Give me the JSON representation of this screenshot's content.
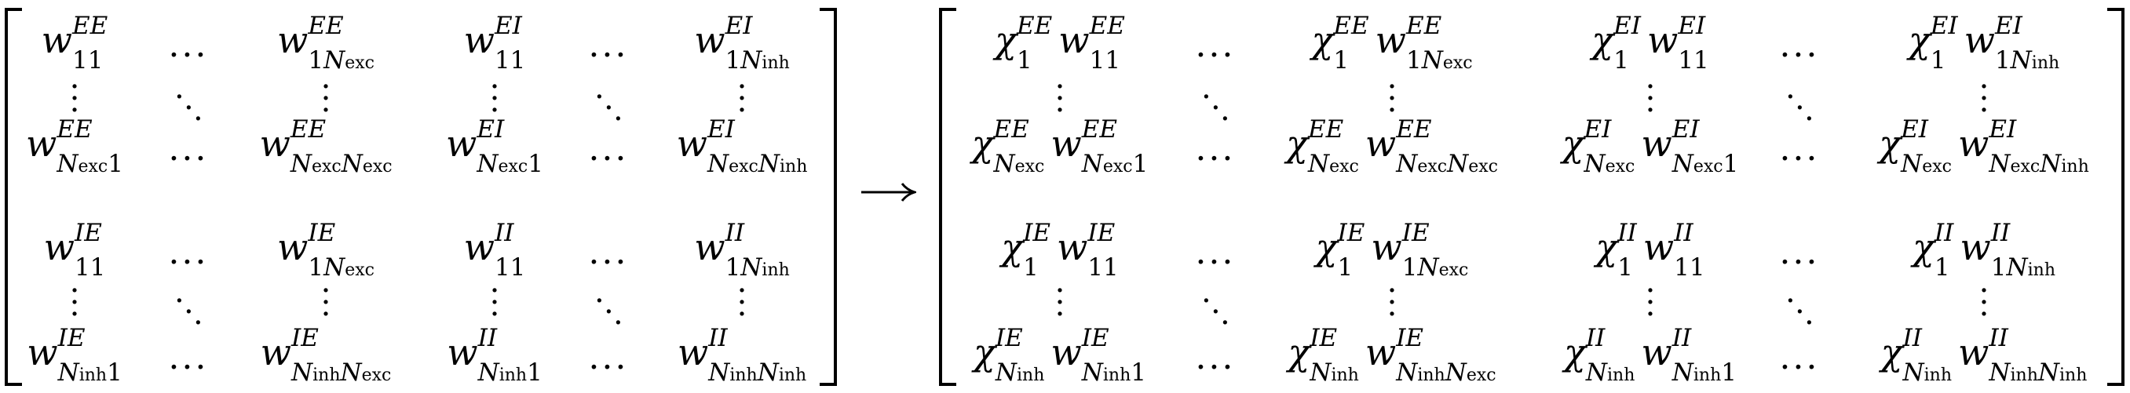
{
  "formula": {
    "arrow_label": "⟶",
    "ellipsis": {
      "horizontal": "⋯",
      "vertical": "⋮",
      "diagonal": "⋱"
    },
    "left_matrix": {
      "rows": [
        [
          "w_{11}^{EE}",
          "⋯",
          "w_{1N_exc}^{EE}",
          "w_{11}^{EI}",
          "⋯",
          "w_{1N_inh}^{EI}"
        ],
        [
          "⋮",
          "⋱",
          "⋮",
          "⋮",
          "⋱",
          "⋮"
        ],
        [
          "w_{N_exc 1}^{EE}",
          "⋯",
          "w_{N_exc N_exc}^{EE}",
          "w_{N_exc 1}^{EI}",
          "⋯",
          "w_{N_exc N_inh}^{EI}"
        ],
        [
          "w_{11}^{IE}",
          "⋯",
          "w_{1N_exc}^{IE}",
          "w_{11}^{II}",
          "⋯",
          "w_{1N_inh}^{II}"
        ],
        [
          "⋮",
          "⋱",
          "⋮",
          "⋮",
          "⋱",
          "⋮"
        ],
        [
          "w_{N_inh 1}^{IE}",
          "⋯",
          "w_{N_inh N_exc}^{IE}",
          "w_{N_inh 1}^{II}",
          "⋯",
          "w_{N_inh N_inh}^{II}"
        ]
      ]
    },
    "right_matrix": {
      "rows": [
        [
          "χ_1^{EE} w_{11}^{EE}",
          "⋯",
          "χ_1^{EE} w_{1N_exc}^{EE}",
          "χ_1^{EI} w_{11}^{EI}",
          "⋯",
          "χ_1^{EI} w_{1N_inh}^{EI}"
        ],
        [
          "⋮",
          "⋱",
          "⋮",
          "⋮",
          "⋱",
          "⋮"
        ],
        [
          "χ_{N_exc}^{EE} w_{N_exc 1}^{EE}",
          "⋯",
          "χ_{N_exc}^{EE} w_{N_exc N_exc}^{EE}",
          "χ_{N_exc}^{EI} w_{N_exc 1}^{EI}",
          "⋯",
          "χ_{N_exc}^{EI} w_{N_exc N_inh}^{EI}"
        ],
        [
          "χ_1^{IE} w_{11}^{IE}",
          "⋯",
          "χ_1^{IE} w_{1N_exc}^{IE}",
          "χ_1^{II} w_{11}^{II}",
          "⋯",
          "χ_1^{II} w_{1N_inh}^{II}"
        ],
        [
          "⋮",
          "⋱",
          "⋮",
          "⋮",
          "⋱",
          "⋮"
        ],
        [
          "χ_{N_inh}^{IE} w_{N_inh 1}^{IE}",
          "⋯",
          "χ_{N_inh}^{IE} w_{N_inh N_exc}^{IE}",
          "χ_{N_inh}^{II} w_{N_inh 1}^{II}",
          "⋯",
          "χ_{N_inh}^{II} w_{N_inh N_inh}^{II}"
        ]
      ]
    }
  }
}
